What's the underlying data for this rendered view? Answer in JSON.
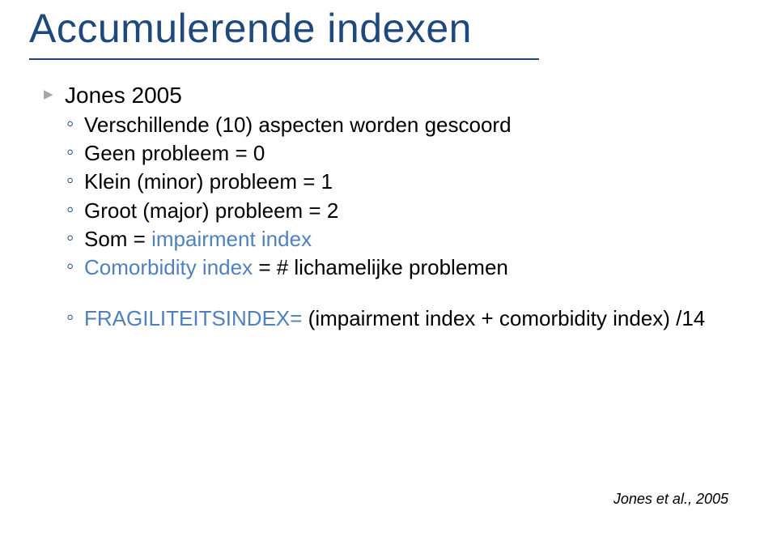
{
  "colors": {
    "title_color": "#1f497d",
    "underline_color": "#1f497d",
    "bullet_lvl1_color": "#a6a6a6",
    "bullet_lvl2_color": "#1f497d",
    "text_color": "#000000",
    "highlight_color": "#4f81bd",
    "citation_color": "#000000",
    "background_color": "#ffffff"
  },
  "title": "Accumulerende indexen",
  "lvl1": {
    "item1": "Jones 2005"
  },
  "lvl2": {
    "a": "Verschillende (10) aspecten worden gescoord",
    "b": "Geen probleem = 0",
    "c": "Klein (minor) probleem = 1",
    "d": "Groot (major) probleem = 2",
    "e_pre": "Som = ",
    "e_hl": "impairment index",
    "f_pre": "Comorbidity index ",
    "f_rest": "= # lichamelijke problemen",
    "g_pre": "FRAGILITEITSINDEX= ",
    "g_rest": "(impairment index + comorbidity index) /14"
  },
  "citation": "Jones et al., 2005"
}
